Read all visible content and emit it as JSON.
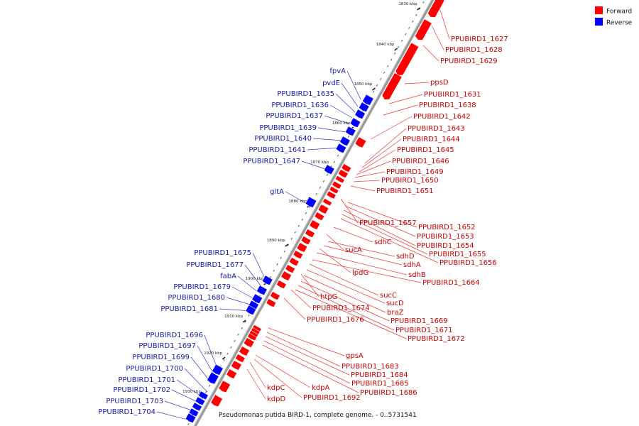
{
  "caption": "Pseudomonas putida BIRD-1, complete genome. - 0..5731541",
  "legend": [
    {
      "label": "Forward",
      "color": "#ff0000"
    },
    {
      "label": "Reverse",
      "color": "#0000ff"
    }
  ],
  "colors": {
    "forward": "#ff0000",
    "reverse": "#0000ff",
    "forward_line": "#ee3333",
    "reverse_line": "#3333cc",
    "backbone": "#888888"
  },
  "ticks": [
    "1830 kbp",
    "1840 kbp",
    "1850 kbp",
    "1860 kbp",
    "1870 kbp",
    "1880 kbp",
    "1890 kbp",
    "1900 kbp",
    "1910 kbp",
    "1920 kbp",
    "1930 kbp"
  ],
  "forward_labels": [
    "PPUBIRD1_1627",
    "PPUBIRD1_1628",
    "PPUBIRD1_1629",
    "ppsD",
    "PPUBIRD1_1631",
    "PPUBIRD1_1638",
    "PPUBIRD1_1642",
    "PPUBIRD1_1643",
    "PPUBIRD1_1644",
    "PPUBIRD1_1645",
    "PPUBIRD1_1646",
    "PPUBIRD1_1649",
    "PPUBIRD1_1650",
    "PPUBIRD1_1651",
    "PPUBIRD1_1657",
    "PPUBIRD1_1652",
    "PPUBIRD1_1653",
    "sdhC",
    "PPUBIRD1_1654",
    "sucA",
    "PPUBIRD1_1655",
    "sdhD",
    "PPUBIRD1_1656",
    "sdhA",
    "lpdG",
    "sdhB",
    "PPUBIRD1_1664",
    "sucC",
    "htpG",
    "sucD",
    "PPUBIRD1_1674",
    "braZ",
    "PPUBIRD1_1676",
    "PPUBIRD1_1669",
    "PPUBIRD1_1671",
    "PPUBIRD1_1672",
    "gpsA",
    "PPUBIRD1_1683",
    "PPUBIRD1_1684",
    "PPUBIRD1_1685",
    "kdpA",
    "kdpC",
    "PPUBIRD1_1686",
    "PPUBIRD1_1692",
    "kdpD"
  ],
  "reverse_labels": [
    "fpvA",
    "pvdE",
    "PPUBIRD1_1635",
    "PPUBIRD1_1636",
    "PPUBIRD1_1637",
    "PPUBIRD1_1639",
    "PPUBIRD1_1640",
    "PPUBIRD1_1641",
    "PPUBIRD1_1647",
    "gltA",
    "PPUBIRD1_1675",
    "PPUBIRD1_1677",
    "fabA",
    "PPUBIRD1_1679",
    "PPUBIRD1_1680",
    "PPUBIRD1_1681",
    "PPUBIRD1_1696",
    "PPUBIRD1_1697",
    "PPUBIRD1_1699",
    "PPUBIRD1_1700",
    "PPUBIRD1_1701",
    "PPUBIRD1_1702",
    "PPUBIRD1_1703",
    "PPUBIRD1_1704"
  ]
}
